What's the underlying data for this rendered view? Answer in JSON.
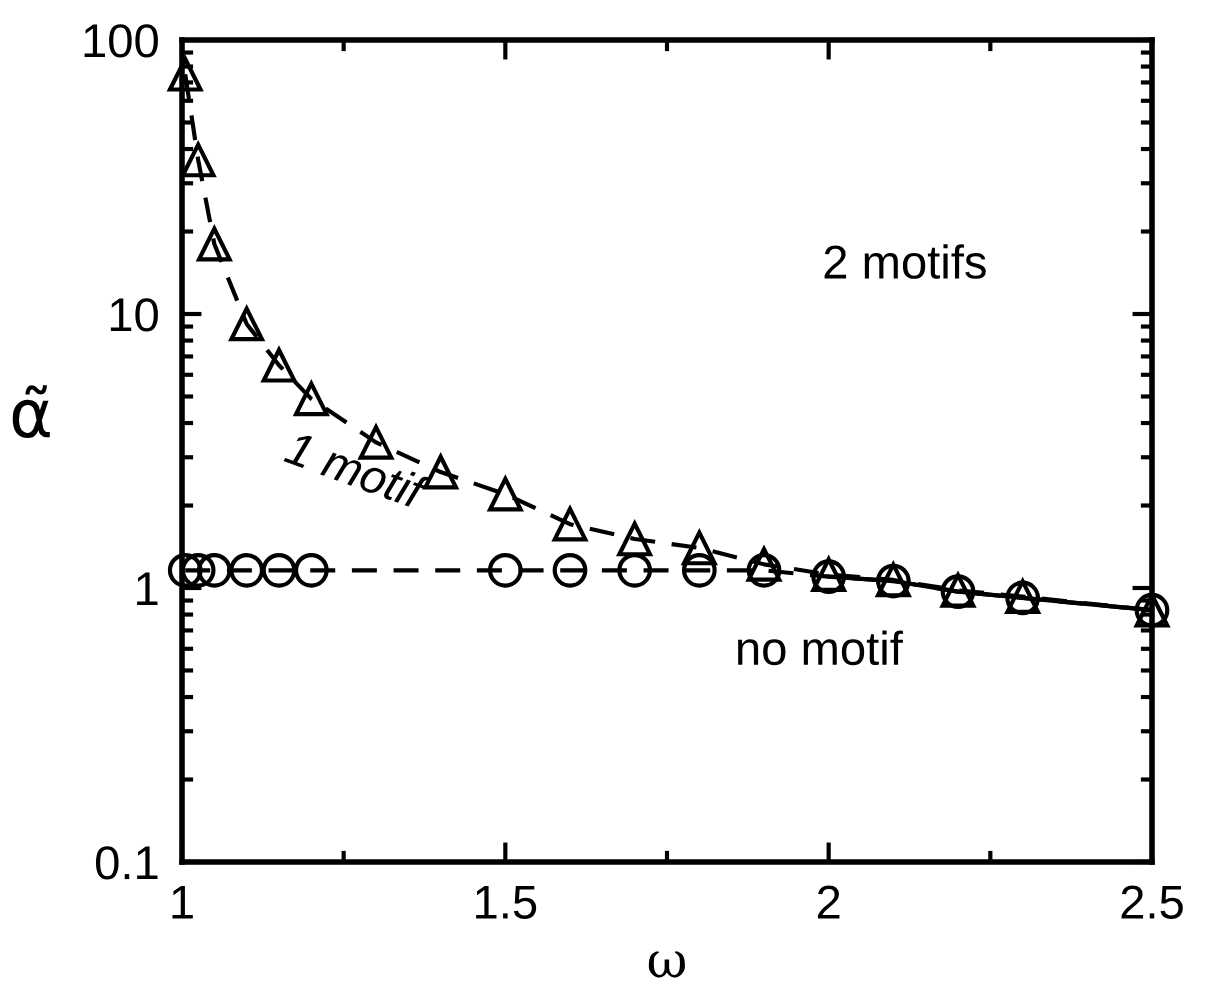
{
  "chart_data": {
    "type": "line",
    "xlabel": "ω",
    "ylabel": "α̃",
    "log": "y",
    "xlim": [
      1,
      2.5
    ],
    "xticks": [
      1,
      1.5,
      2,
      2.5
    ],
    "ylim": [
      0.1,
      100
    ],
    "yticks": [
      0.1,
      1,
      10,
      100
    ],
    "grid": false,
    "legend": false,
    "series": [
      {
        "color": "#000000",
        "marker": "triangle",
        "line_style": "dashed",
        "x": [
          1.005,
          1.025,
          1.05,
          1.1,
          1.15,
          1.2,
          1.3,
          1.4,
          1.5,
          1.6,
          1.7,
          1.8,
          1.9,
          2.0,
          2.1,
          2.2,
          2.3,
          2.5
        ],
        "values": [
          75,
          36.5,
          18,
          9.2,
          6.5,
          4.9,
          3.4,
          2.65,
          2.2,
          1.71,
          1.51,
          1.4,
          1.22,
          1.12,
          1.07,
          0.98,
          0.93,
          0.83
        ]
      },
      {
        "color": "#000000",
        "marker": "circle",
        "line_style": "dashed",
        "x": [
          1.005,
          1.025,
          1.05,
          1.1,
          1.15,
          1.2,
          1.5,
          1.6,
          1.7,
          1.8,
          1.9,
          2.0,
          2.1,
          2.2,
          2.3,
          2.5
        ],
        "values": [
          1.16,
          1.16,
          1.16,
          1.16,
          1.16,
          1.16,
          1.16,
          1.16,
          1.16,
          1.16,
          1.16,
          1.1,
          1.06,
          0.97,
          0.92,
          0.83
        ]
      },
      {
        "color": "#000000",
        "marker": "none",
        "line_style": "solid",
        "x": [
          2.0,
          2.1,
          2.2,
          2.3,
          2.5
        ],
        "values": [
          1.1,
          1.06,
          0.97,
          0.92,
          0.83
        ]
      }
    ],
    "annotations": [
      "2 motifs",
      "1 motif",
      "no motif"
    ]
  }
}
